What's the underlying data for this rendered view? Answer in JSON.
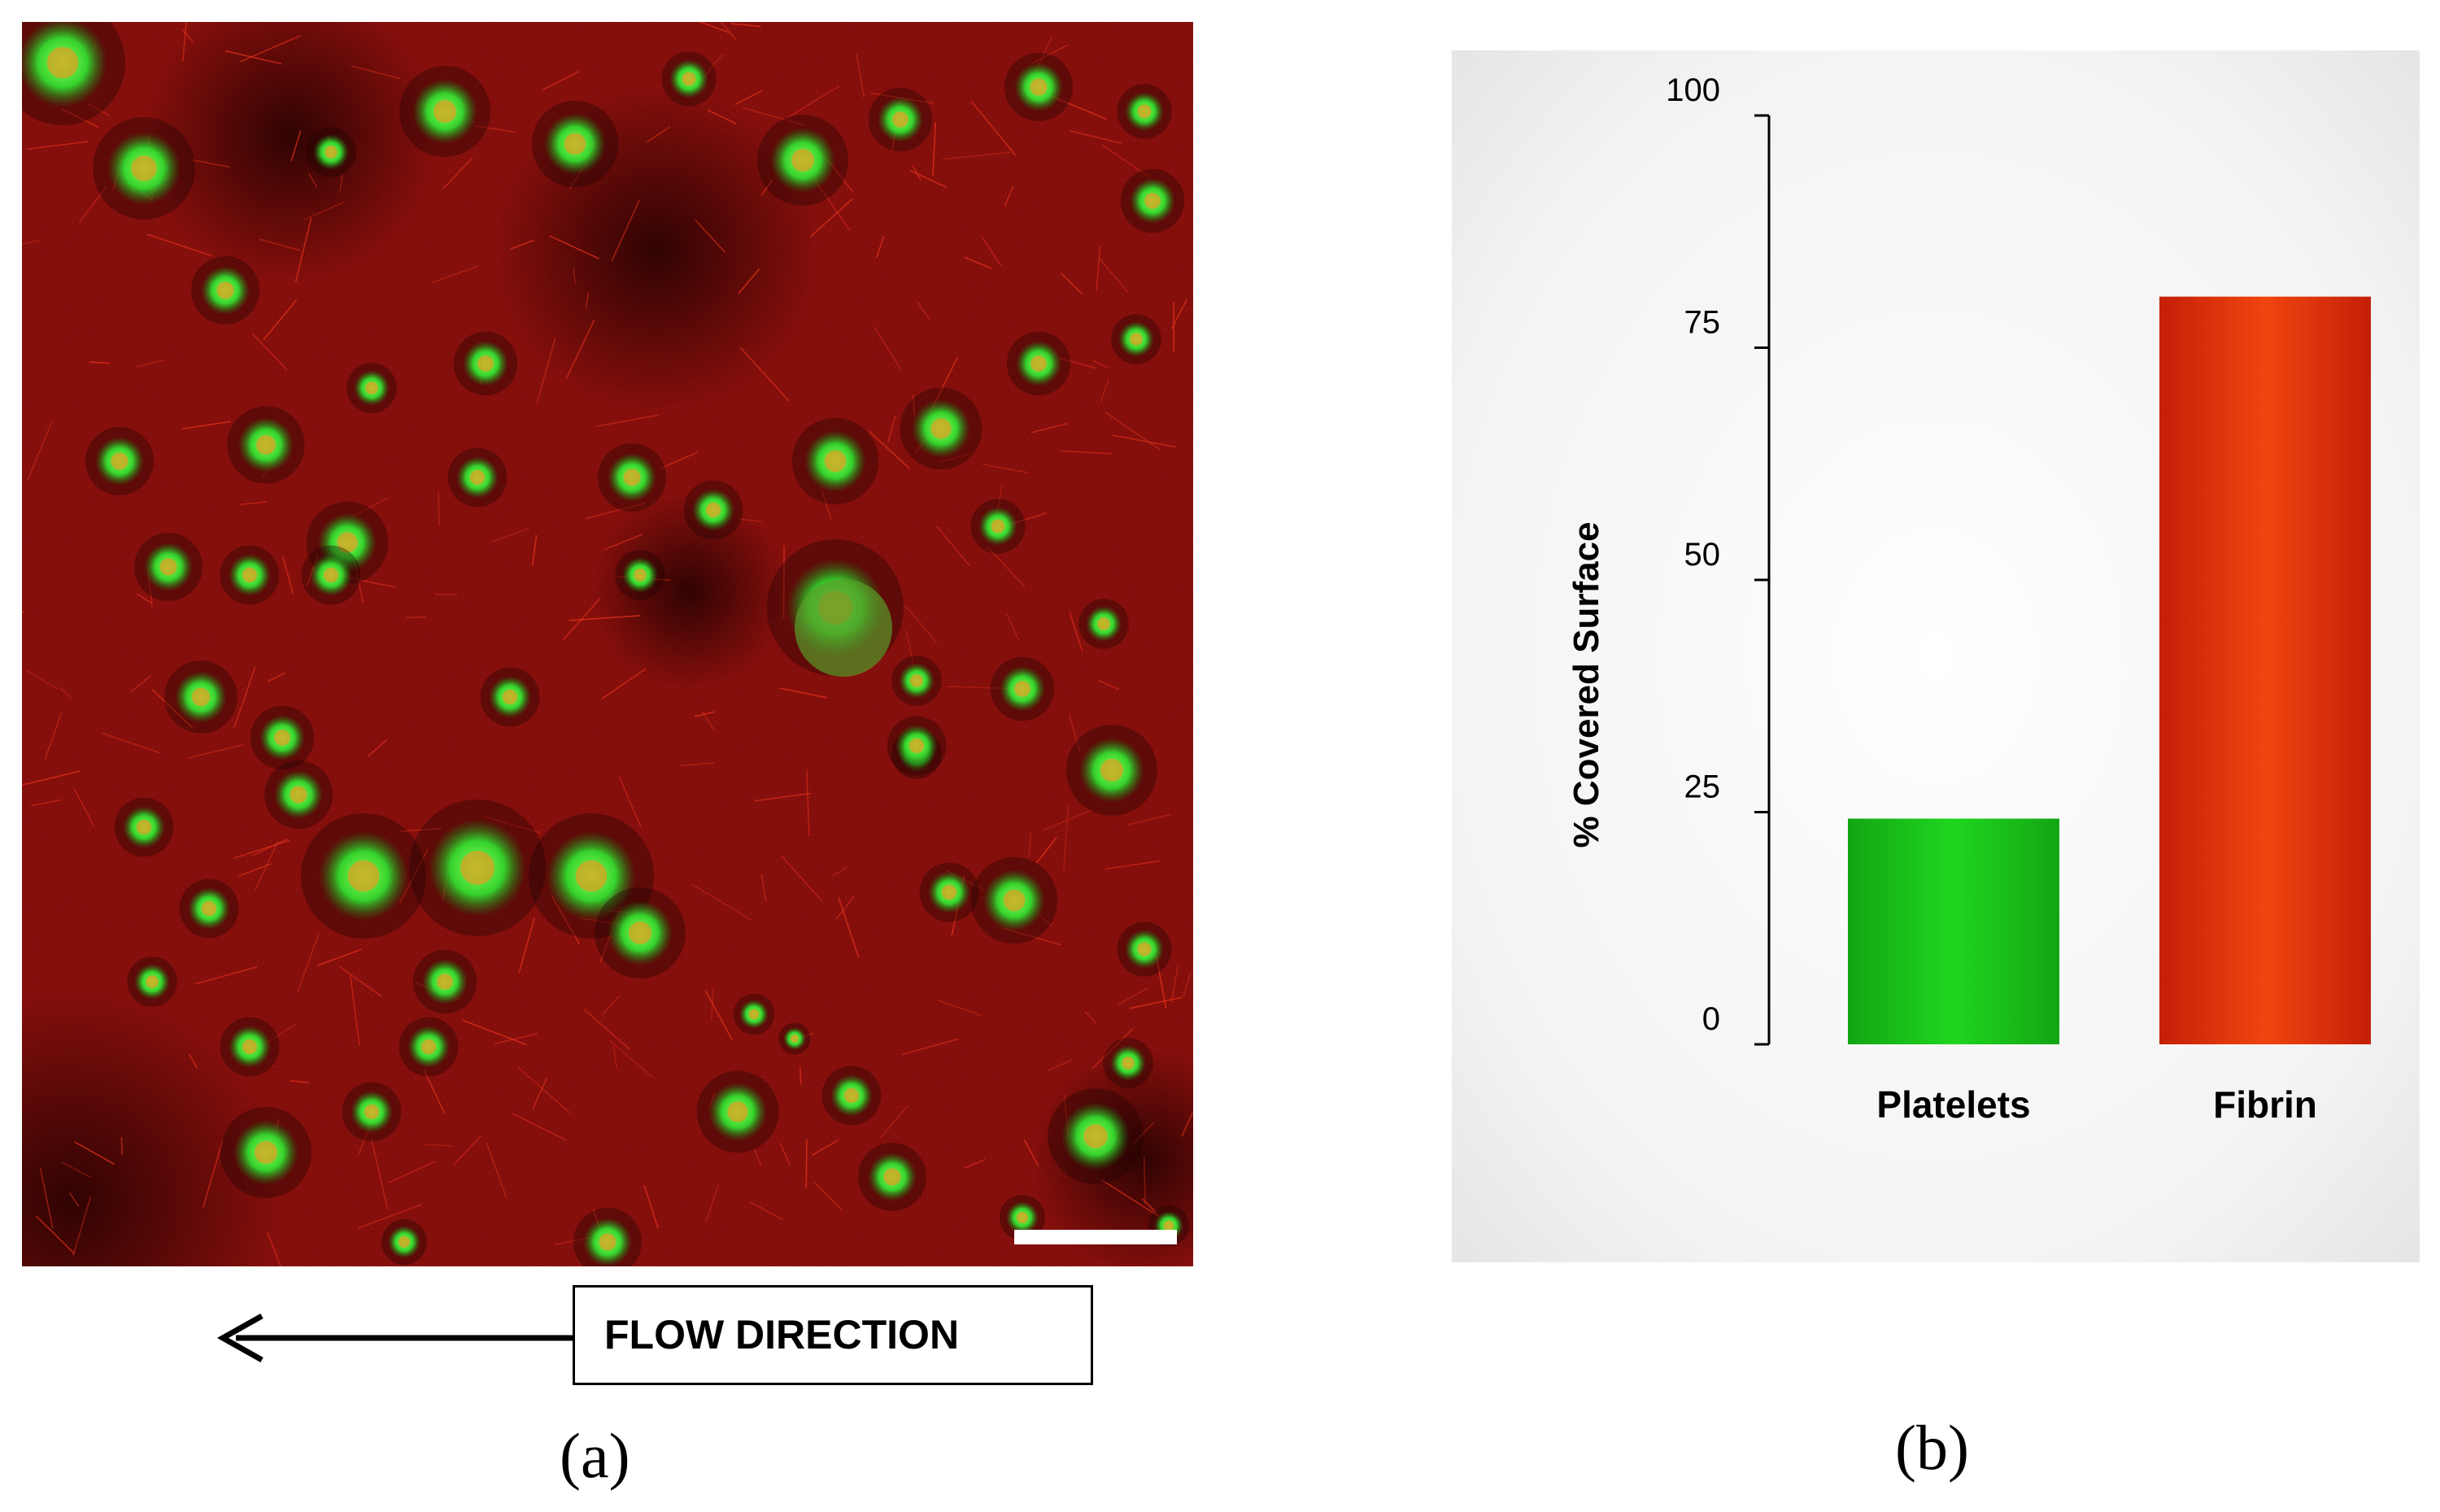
{
  "panel_a": {
    "label": "(a)",
    "flow_label": "FLOW DIRECTION",
    "colors": {
      "background": "#7a0a06",
      "platelets": "#2ed12a",
      "fibrin": "#b0140c",
      "scale_bar": "#ffffff"
    }
  },
  "panel_b": {
    "label": "(b)"
  },
  "chart_data": {
    "type": "bar",
    "categories": [
      "Platelets",
      "Fibrin"
    ],
    "values": [
      24.3,
      80.5
    ],
    "colors": [
      "#1fcf1f",
      "#e03a10"
    ],
    "ylabel": "% Covered Surface",
    "xlabel": "",
    "ylim": [
      0,
      100
    ],
    "yticks": [
      0,
      25,
      50,
      75,
      100
    ],
    "grid": false,
    "legend": "none"
  }
}
